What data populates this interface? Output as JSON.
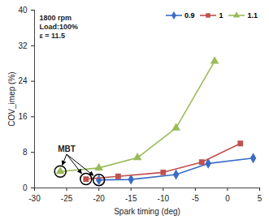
{
  "chart_data": {
    "type": "line",
    "x_label": "Spark timing (deg)",
    "y_label": "COV_imep (%)",
    "xlim": [
      -30,
      5
    ],
    "xticks": [
      -30,
      -25,
      -20,
      -15,
      -10,
      -5,
      0,
      5
    ],
    "ylim": [
      0,
      40
    ],
    "yticks": [
      0,
      8,
      16,
      24,
      32,
      40
    ],
    "grid": false,
    "legend": "top-right",
    "annotations": {
      "conditions": [
        "1800 rpm",
        "Load:100%",
        "ε = 11.5"
      ],
      "mbt": "MBT"
    },
    "series": [
      {
        "name": "0.9",
        "color": "#3a6cc6",
        "marker": "diamond",
        "x": [
          -20,
          -15,
          -8,
          -3,
          4
        ],
        "values": [
          1.8,
          1.9,
          3.0,
          5.5,
          6.7
        ]
      },
      {
        "name": "1",
        "color": "#c0504d",
        "marker": "square",
        "x": [
          -22,
          -17,
          -10,
          -4,
          2
        ],
        "values": [
          2.0,
          2.6,
          3.5,
          5.8,
          10.0
        ]
      },
      {
        "name": "1.1",
        "color": "#9bbb59",
        "marker": "triangle",
        "x": [
          -26,
          -20,
          -14,
          -8,
          -2
        ],
        "values": [
          3.7,
          4.5,
          6.8,
          13.5,
          28.5
        ]
      }
    ]
  }
}
